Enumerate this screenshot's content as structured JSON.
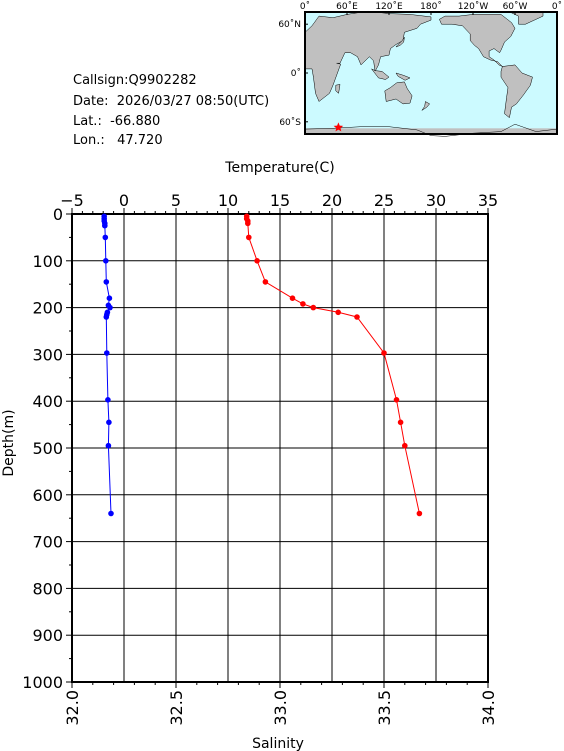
{
  "station": {
    "callsign": "Callsign:Q9902282",
    "date": "Date:  2026/03/27 08:50(UTC)",
    "lat": "Lat.:  -66.880",
    "lon": "Lon.:   47.720"
  },
  "map": {
    "lon_ticks": [
      "0˚",
      "60˚E",
      "120˚E",
      "180˚",
      "120˚W",
      "60˚W",
      "0˚"
    ],
    "lat_ticks": [
      "60˚N",
      "0˚",
      "60˚S"
    ],
    "station_lon": 47.72,
    "station_lat": -66.88,
    "colors": {
      "ocean": "#ccfaff",
      "land": "#c0c0c0",
      "marker": "#ff0000"
    }
  },
  "chart_data": {
    "type": "line",
    "top_axis_label": "Temperature(C)",
    "bottom_axis_label": "Salinity",
    "ylabel": "Depth(m)",
    "temperature_range": [
      -5,
      35
    ],
    "salinity_range": [
      32.0,
      34.0
    ],
    "depth_range": [
      0,
      1000
    ],
    "temperature_ticks": [
      "−5",
      "0",
      "5",
      "10",
      "15",
      "20",
      "25",
      "30",
      "35"
    ],
    "salinity_ticks": [
      "32.0",
      "32.5",
      "33.0",
      "33.5",
      "34.0"
    ],
    "depth_ticks": [
      "0",
      "100",
      "200",
      "300",
      "400",
      "500",
      "600",
      "700",
      "800",
      "900",
      "1000"
    ],
    "grid": true,
    "series": [
      {
        "axis": "temperature",
        "color": "#0000ff",
        "points": [
          {
            "depth": 5,
            "value": -1.9
          },
          {
            "depth": 10,
            "value": -1.9
          },
          {
            "depth": 15,
            "value": -1.9
          },
          {
            "depth": 20,
            "value": -1.85
          },
          {
            "depth": 25,
            "value": -1.85
          },
          {
            "depth": 50,
            "value": -1.8
          },
          {
            "depth": 100,
            "value": -1.75
          },
          {
            "depth": 145,
            "value": -1.7
          },
          {
            "depth": 180,
            "value": -1.4
          },
          {
            "depth": 195,
            "value": -1.5
          },
          {
            "depth": 200,
            "value": -1.35
          },
          {
            "depth": 210,
            "value": -1.6
          },
          {
            "depth": 215,
            "value": -1.65
          },
          {
            "depth": 220,
            "value": -1.7
          },
          {
            "depth": 297,
            "value": -1.65
          },
          {
            "depth": 397,
            "value": -1.55
          },
          {
            "depth": 445,
            "value": -1.45
          },
          {
            "depth": 495,
            "value": -1.5
          },
          {
            "depth": 640,
            "value": -1.25
          }
        ]
      },
      {
        "axis": "salinity",
        "color": "#ff0000",
        "points": [
          {
            "depth": 5,
            "value": 32.84
          },
          {
            "depth": 10,
            "value": 32.84
          },
          {
            "depth": 15,
            "value": 32.845
          },
          {
            "depth": 20,
            "value": 32.845
          },
          {
            "depth": 50,
            "value": 32.85
          },
          {
            "depth": 100,
            "value": 32.89
          },
          {
            "depth": 145,
            "value": 32.93
          },
          {
            "depth": 180,
            "value": 33.06
          },
          {
            "depth": 192,
            "value": 33.11
          },
          {
            "depth": 200,
            "value": 33.16
          },
          {
            "depth": 210,
            "value": 33.28
          },
          {
            "depth": 220,
            "value": 33.37
          },
          {
            "depth": 297,
            "value": 33.5
          },
          {
            "depth": 397,
            "value": 33.56
          },
          {
            "depth": 445,
            "value": 33.58
          },
          {
            "depth": 495,
            "value": 33.6
          },
          {
            "depth": 640,
            "value": 33.67
          }
        ]
      }
    ]
  }
}
